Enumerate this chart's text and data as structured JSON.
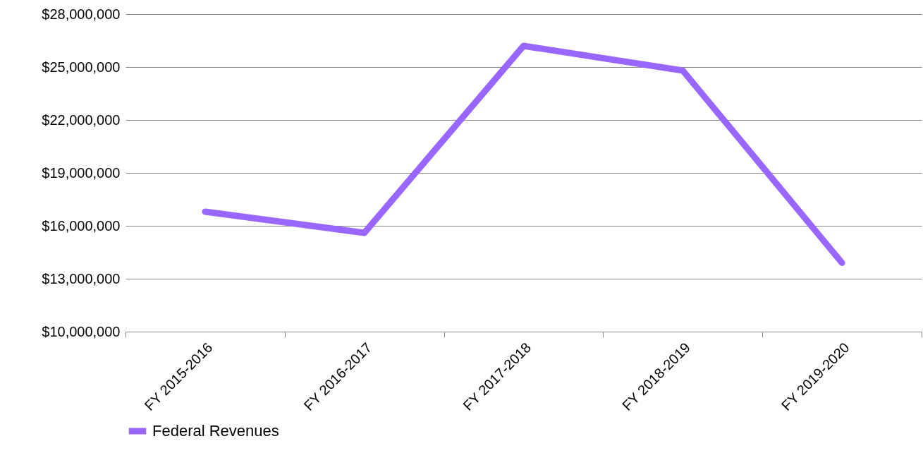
{
  "chart_data": {
    "type": "line",
    "categories": [
      "FY 2015-2016",
      "FY 2016-2017",
      "FY 2017-2018",
      "FY 2018-2019",
      "FY 2019-2020"
    ],
    "series": [
      {
        "name": "Federal Revenues",
        "color": "#9966ff",
        "values": [
          16800000,
          15600000,
          26200000,
          24800000,
          13900000
        ]
      }
    ],
    "ylim": [
      10000000,
      28000000
    ],
    "yticks": [
      {
        "value": 10000000,
        "label": "$10,000,000"
      },
      {
        "value": 13000000,
        "label": "$13,000,000"
      },
      {
        "value": 16000000,
        "label": "$16,000,000"
      },
      {
        "value": 19000000,
        "label": "$19,000,000"
      },
      {
        "value": 22000000,
        "label": "$22,000,000"
      },
      {
        "value": 25000000,
        "label": "$25,000,000"
      },
      {
        "value": 28000000,
        "label": "$28,000,000"
      }
    ],
    "grid": "y",
    "legend": "bottom",
    "marker": "none",
    "line_style": "solid"
  }
}
